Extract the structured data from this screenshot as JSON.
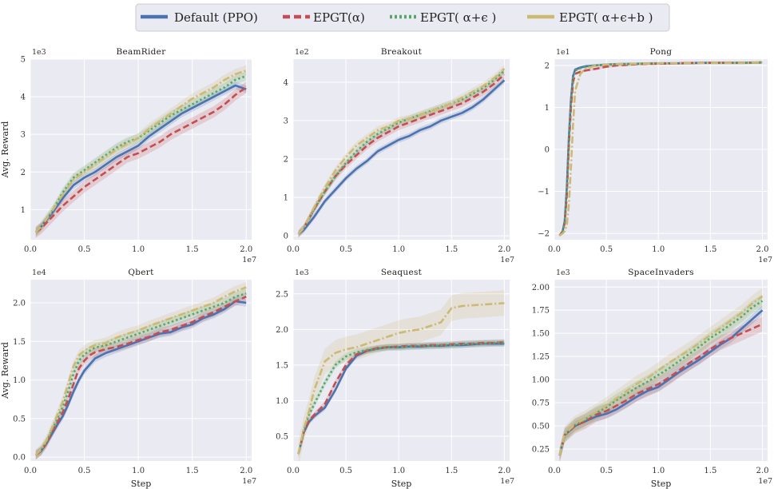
{
  "legend": [
    {
      "name": "Default (PPO)",
      "color": "#4c72b0",
      "dash": "solid"
    },
    {
      "name": "EPGT(α)",
      "color": "#c44e52",
      "dash": "dashed"
    },
    {
      "name": "EPGT( α+ϵ )",
      "color": "#55a868",
      "dash": "dotted"
    },
    {
      "name": "EPGT( α+ϵ+b )",
      "color": "#ccb974",
      "dash": "dashdot"
    }
  ],
  "chart_data": [
    {
      "type": "line",
      "title": "BeamRider",
      "ylabel": "Avg. Reward",
      "xlabel": "",
      "y_offset": "1e3",
      "x_offset": "1e7",
      "xlim": [
        0,
        2.05
      ],
      "ylim": [
        0.2,
        5.0
      ],
      "xticks": [
        0.0,
        0.5,
        1.0,
        1.5,
        2.0
      ],
      "xtick_labels": [
        "0.0",
        "0.5",
        "1.0",
        "1.5",
        "2.0"
      ],
      "yticks": [
        1,
        2,
        3,
        4,
        5
      ],
      "ytick_labels": [
        "1",
        "2",
        "3",
        "4",
        "5"
      ],
      "x": [
        0.05,
        0.1,
        0.2,
        0.3,
        0.4,
        0.5,
        0.6,
        0.7,
        0.8,
        0.9,
        1.0,
        1.1,
        1.2,
        1.3,
        1.4,
        1.5,
        1.6,
        1.7,
        1.8,
        1.9,
        2.0
      ],
      "series": [
        {
          "name": "Default (PPO)",
          "values": [
            0.4,
            0.55,
            0.9,
            1.3,
            1.65,
            1.85,
            2.0,
            2.2,
            2.4,
            2.55,
            2.7,
            2.95,
            3.15,
            3.35,
            3.55,
            3.7,
            3.85,
            4.0,
            4.15,
            4.3,
            4.2
          ],
          "band": 0.1
        },
        {
          "name": "EPGT(α)",
          "values": [
            0.4,
            0.5,
            0.8,
            1.1,
            1.35,
            1.6,
            1.8,
            2.0,
            2.2,
            2.4,
            2.5,
            2.65,
            2.8,
            3.0,
            3.15,
            3.3,
            3.45,
            3.6,
            3.8,
            4.05,
            4.25
          ],
          "band": 0.15
        },
        {
          "name": "EPGT( α+ϵ )",
          "values": [
            0.4,
            0.55,
            0.95,
            1.45,
            1.85,
            2.05,
            2.25,
            2.45,
            2.65,
            2.8,
            2.9,
            3.1,
            3.3,
            3.5,
            3.65,
            3.8,
            3.95,
            4.1,
            4.25,
            4.45,
            4.55
          ],
          "band": 0.12
        },
        {
          "name": "EPGT( α+ϵ+b )",
          "values": [
            0.4,
            0.55,
            0.95,
            1.4,
            1.8,
            2.0,
            2.2,
            2.4,
            2.6,
            2.75,
            2.9,
            3.15,
            3.35,
            3.55,
            3.75,
            3.95,
            4.1,
            4.25,
            4.45,
            4.6,
            4.7
          ],
          "band": 0.14
        }
      ]
    },
    {
      "type": "line",
      "title": "Breakout",
      "ylabel": "",
      "xlabel": "",
      "y_offset": "1e2",
      "x_offset": "1e7",
      "xlim": [
        0,
        2.05
      ],
      "ylim": [
        -0.1,
        4.6
      ],
      "xticks": [
        0.0,
        0.5,
        1.0,
        1.5,
        2.0
      ],
      "xtick_labels": [
        "0.0",
        "0.5",
        "1.0",
        "1.5",
        "2.0"
      ],
      "yticks": [
        0,
        1,
        2,
        3,
        4
      ],
      "ytick_labels": [
        "0",
        "1",
        "2",
        "3",
        "4"
      ],
      "x": [
        0.05,
        0.1,
        0.2,
        0.3,
        0.4,
        0.5,
        0.6,
        0.7,
        0.8,
        0.9,
        1.0,
        1.1,
        1.2,
        1.3,
        1.4,
        1.5,
        1.6,
        1.7,
        1.8,
        1.9,
        2.0
      ],
      "series": [
        {
          "name": "Default (PPO)",
          "values": [
            0.05,
            0.15,
            0.5,
            0.9,
            1.2,
            1.5,
            1.75,
            1.95,
            2.2,
            2.35,
            2.5,
            2.6,
            2.75,
            2.85,
            3.0,
            3.1,
            3.2,
            3.35,
            3.55,
            3.8,
            4.05
          ],
          "band": 0.08
        },
        {
          "name": "EPGT(α)",
          "values": [
            0.05,
            0.2,
            0.7,
            1.15,
            1.55,
            1.85,
            2.1,
            2.35,
            2.55,
            2.7,
            2.85,
            2.95,
            3.05,
            3.15,
            3.25,
            3.35,
            3.45,
            3.6,
            3.75,
            3.95,
            4.2
          ],
          "band": 0.1
        },
        {
          "name": "EPGT( α+ϵ )",
          "values": [
            0.05,
            0.2,
            0.7,
            1.15,
            1.55,
            1.9,
            2.2,
            2.45,
            2.65,
            2.8,
            2.95,
            3.05,
            3.15,
            3.25,
            3.35,
            3.45,
            3.55,
            3.7,
            3.85,
            4.05,
            4.3
          ],
          "band": 0.08
        },
        {
          "name": "EPGT( α+ϵ+b )",
          "values": [
            0.05,
            0.2,
            0.75,
            1.25,
            1.7,
            2.05,
            2.35,
            2.55,
            2.75,
            2.85,
            3.0,
            3.05,
            3.15,
            3.25,
            3.35,
            3.45,
            3.6,
            3.75,
            3.9,
            4.1,
            4.35
          ],
          "band": 0.1
        }
      ]
    },
    {
      "type": "line",
      "title": "Pong",
      "ylabel": "",
      "xlabel": "",
      "y_offset": "1e1",
      "x_offset": "1e7",
      "xlim": [
        0,
        2.05
      ],
      "ylim": [
        -2.15,
        2.15
      ],
      "xticks": [
        0.0,
        0.5,
        1.0,
        1.5,
        2.0
      ],
      "xtick_labels": [
        "0.0",
        "0.5",
        "1.0",
        "1.5",
        "2.0"
      ],
      "yticks": [
        -2,
        -1,
        0,
        1,
        2
      ],
      "ytick_labels": [
        "−2",
        "−1",
        "0",
        "1",
        "2"
      ],
      "x": [
        0.05,
        0.08,
        0.1,
        0.12,
        0.14,
        0.16,
        0.18,
        0.2,
        0.25,
        0.3,
        0.4,
        0.5,
        0.6,
        0.8,
        1.0,
        1.2,
        1.4,
        1.6,
        1.8,
        2.0
      ],
      "series": [
        {
          "name": "Default (PPO)",
          "values": [
            -2.05,
            -1.95,
            -1.7,
            -0.9,
            0.3,
            1.2,
            1.75,
            1.9,
            1.95,
            1.98,
            2.0,
            2.02,
            2.03,
            2.04,
            2.05,
            2.05,
            2.06,
            2.06,
            2.06,
            2.07
          ],
          "band": 0.03
        },
        {
          "name": "EPGT(α)",
          "values": [
            -2.05,
            -1.95,
            -1.75,
            -1.1,
            0.1,
            1.0,
            1.6,
            1.8,
            1.85,
            1.88,
            1.92,
            1.97,
            2.0,
            2.03,
            2.04,
            2.05,
            2.06,
            2.06,
            2.06,
            2.07
          ],
          "band": 0.03
        },
        {
          "name": "EPGT( α+ϵ )",
          "values": [
            -2.05,
            -1.95,
            -1.7,
            -0.95,
            0.25,
            1.15,
            1.7,
            1.88,
            1.93,
            1.97,
            2.0,
            2.02,
            2.03,
            2.04,
            2.05,
            2.05,
            2.06,
            2.06,
            2.06,
            2.07
          ],
          "band": 0.03
        },
        {
          "name": "EPGT( α+ϵ+b )",
          "values": [
            -2.05,
            -2.0,
            -1.95,
            -1.8,
            -1.3,
            -0.4,
            0.6,
            1.4,
            1.8,
            1.92,
            2.0,
            2.02,
            2.03,
            2.04,
            2.05,
            2.05,
            2.06,
            2.06,
            2.06,
            2.07
          ],
          "band": 0.03
        }
      ]
    },
    {
      "type": "line",
      "title": "Qbert",
      "ylabel": "Avg. Reward",
      "xlabel": "Step",
      "y_offset": "1e4",
      "x_offset": "1e7",
      "xlim": [
        0,
        2.05
      ],
      "ylim": [
        -0.05,
        2.3
      ],
      "xticks": [
        0.0,
        0.5,
        1.0,
        1.5,
        2.0
      ],
      "xtick_labels": [
        "0.0",
        "0.5",
        "1.0",
        "1.5",
        "2.0"
      ],
      "yticks": [
        0.0,
        0.5,
        1.0,
        1.5,
        2.0
      ],
      "ytick_labels": [
        "0.0",
        "0.5",
        "1.0",
        "1.5",
        "2.0"
      ],
      "x": [
        0.05,
        0.1,
        0.15,
        0.2,
        0.25,
        0.3,
        0.35,
        0.4,
        0.45,
        0.5,
        0.55,
        0.6,
        0.7,
        0.8,
        0.9,
        1.0,
        1.1,
        1.2,
        1.3,
        1.4,
        1.5,
        1.6,
        1.7,
        1.8,
        1.9,
        2.0
      ],
      "series": [
        {
          "name": "Default (PPO)",
          "values": [
            0.03,
            0.08,
            0.18,
            0.3,
            0.42,
            0.53,
            0.68,
            0.85,
            1.0,
            1.12,
            1.2,
            1.28,
            1.35,
            1.4,
            1.45,
            1.5,
            1.55,
            1.6,
            1.62,
            1.68,
            1.72,
            1.8,
            1.85,
            1.92,
            2.02,
            2.0
          ],
          "band": 0.05
        },
        {
          "name": "EPGT(α)",
          "values": [
            0.03,
            0.08,
            0.18,
            0.32,
            0.45,
            0.58,
            0.75,
            0.95,
            1.15,
            1.25,
            1.32,
            1.36,
            1.4,
            1.43,
            1.47,
            1.52,
            1.56,
            1.62,
            1.65,
            1.7,
            1.75,
            1.82,
            1.88,
            1.95,
            2.02,
            2.08
          ],
          "band": 0.06
        },
        {
          "name": "EPGT( α+ϵ )",
          "values": [
            0.03,
            0.09,
            0.2,
            0.35,
            0.5,
            0.65,
            0.85,
            1.08,
            1.25,
            1.33,
            1.38,
            1.42,
            1.45,
            1.5,
            1.55,
            1.6,
            1.65,
            1.7,
            1.75,
            1.8,
            1.85,
            1.9,
            1.95,
            2.0,
            2.08,
            2.12
          ],
          "band": 0.06
        },
        {
          "name": "EPGT( α+ϵ+b )",
          "values": [
            0.03,
            0.1,
            0.22,
            0.38,
            0.55,
            0.72,
            0.95,
            1.18,
            1.32,
            1.38,
            1.42,
            1.45,
            1.48,
            1.55,
            1.6,
            1.64,
            1.7,
            1.75,
            1.8,
            1.85,
            1.9,
            1.95,
            2.0,
            2.08,
            2.15,
            2.2
          ],
          "band": 0.07
        }
      ]
    },
    {
      "type": "line",
      "title": "Seaquest",
      "ylabel": "",
      "xlabel": "Step",
      "y_offset": "1e3",
      "x_offset": "1e7",
      "xlim": [
        0,
        2.05
      ],
      "ylim": [
        0.15,
        2.7
      ],
      "xticks": [
        0.0,
        0.5,
        1.0,
        1.5,
        2.0
      ],
      "xtick_labels": [
        "0.0",
        "0.5",
        "1.0",
        "1.5",
        "2.0"
      ],
      "yticks": [
        0.5,
        1.0,
        1.5,
        2.0,
        2.5
      ],
      "ytick_labels": [
        "0.5",
        "1.0",
        "1.5",
        "2.0",
        "2.5"
      ],
      "x": [
        0.05,
        0.1,
        0.15,
        0.2,
        0.3,
        0.4,
        0.5,
        0.6,
        0.7,
        0.8,
        0.9,
        1.0,
        1.1,
        1.2,
        1.3,
        1.4,
        1.5,
        1.6,
        1.7,
        1.8,
        1.9,
        2.0
      ],
      "series": [
        {
          "name": "Default (PPO)",
          "values": [
            0.25,
            0.55,
            0.7,
            0.78,
            0.9,
            1.15,
            1.45,
            1.63,
            1.7,
            1.73,
            1.75,
            1.75,
            1.76,
            1.76,
            1.77,
            1.77,
            1.78,
            1.78,
            1.79,
            1.8,
            1.8,
            1.8
          ],
          "band": 0.04
        },
        {
          "name": "EPGT(α)",
          "values": [
            0.25,
            0.55,
            0.72,
            0.8,
            0.95,
            1.25,
            1.5,
            1.65,
            1.7,
            1.74,
            1.75,
            1.76,
            1.77,
            1.77,
            1.78,
            1.78,
            1.79,
            1.8,
            1.8,
            1.81,
            1.81,
            1.82
          ],
          "band": 0.04
        },
        {
          "name": "EPGT( α+ϵ )",
          "values": [
            0.25,
            0.58,
            0.8,
            0.95,
            1.25,
            1.5,
            1.62,
            1.68,
            1.71,
            1.73,
            1.75,
            1.75,
            1.76,
            1.77,
            1.77,
            1.78,
            1.78,
            1.79,
            1.8,
            1.8,
            1.81,
            1.81
          ],
          "band": 0.05
        },
        {
          "name": "EPGT( α+ϵ+b )",
          "values": [
            0.25,
            0.6,
            0.85,
            1.15,
            1.55,
            1.67,
            1.72,
            1.75,
            1.8,
            1.85,
            1.9,
            1.95,
            1.98,
            2.0,
            2.05,
            2.1,
            2.3,
            2.33,
            2.34,
            2.35,
            2.36,
            2.37
          ],
          "band": 0.18
        }
      ]
    },
    {
      "type": "line",
      "title": "SpaceInvaders",
      "ylabel": "",
      "xlabel": "Step",
      "y_offset": "1e3",
      "x_offset": "1e7",
      "xlim": [
        0,
        2.05
      ],
      "ylim": [
        0.12,
        2.08
      ],
      "xticks": [
        0.0,
        0.5,
        1.0,
        1.5,
        2.0
      ],
      "xtick_labels": [
        "0.0",
        "0.5",
        "1.0",
        "1.5",
        "2.0"
      ],
      "yticks": [
        0.25,
        0.5,
        0.75,
        1.0,
        1.25,
        1.5,
        1.75,
        2.0
      ],
      "ytick_labels": [
        "0.25",
        "0.50",
        "0.75",
        "1.00",
        "1.25",
        "1.50",
        "1.75",
        "2.00"
      ],
      "x": [
        0.05,
        0.1,
        0.2,
        0.3,
        0.4,
        0.5,
        0.6,
        0.7,
        0.8,
        0.9,
        1.0,
        1.1,
        1.2,
        1.3,
        1.4,
        1.5,
        1.6,
        1.7,
        1.8,
        1.9,
        2.0
      ],
      "series": [
        {
          "name": "Default (PPO)",
          "values": [
            0.18,
            0.4,
            0.5,
            0.55,
            0.6,
            0.63,
            0.68,
            0.75,
            0.82,
            0.88,
            0.92,
            1.0,
            1.08,
            1.15,
            1.22,
            1.3,
            1.38,
            1.45,
            1.55,
            1.65,
            1.75
          ],
          "band": 0.05
        },
        {
          "name": "EPGT(α)",
          "values": [
            0.18,
            0.4,
            0.5,
            0.55,
            0.62,
            0.66,
            0.72,
            0.78,
            0.85,
            0.9,
            0.95,
            1.02,
            1.1,
            1.18,
            1.25,
            1.33,
            1.4,
            1.45,
            1.5,
            1.55,
            1.6
          ],
          "band": 0.08
        },
        {
          "name": "EPGT( α+ϵ )",
          "values": [
            0.18,
            0.4,
            0.51,
            0.57,
            0.64,
            0.7,
            0.78,
            0.85,
            0.92,
            0.98,
            1.05,
            1.12,
            1.2,
            1.28,
            1.36,
            1.45,
            1.52,
            1.6,
            1.68,
            1.78,
            1.85
          ],
          "band": 0.07
        },
        {
          "name": "EPGT( α+ϵ+b )",
          "values": [
            0.18,
            0.41,
            0.52,
            0.58,
            0.65,
            0.72,
            0.8,
            0.88,
            0.96,
            1.02,
            1.1,
            1.18,
            1.25,
            1.32,
            1.4,
            1.48,
            1.56,
            1.64,
            1.72,
            1.82,
            1.9
          ],
          "band": 0.09
        }
      ]
    }
  ]
}
